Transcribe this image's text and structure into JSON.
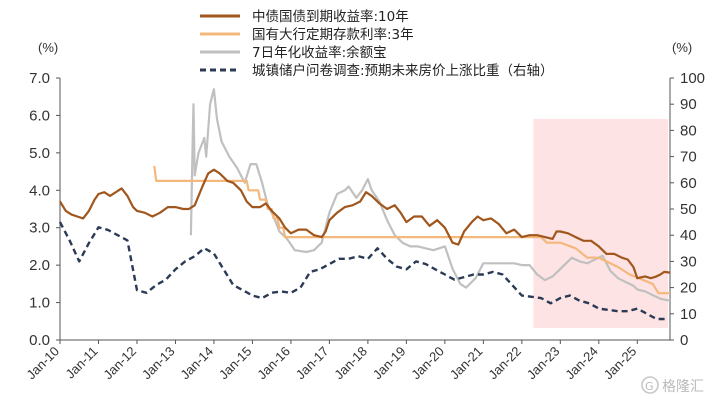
{
  "chart_data": {
    "type": "line",
    "left_unit": "(%)",
    "right_unit": "(%)",
    "y_left": {
      "min": 0,
      "max": 7,
      "ticks": [
        "0.0",
        "1.0",
        "2.0",
        "3.0",
        "4.0",
        "5.0",
        "6.0",
        "7.0"
      ]
    },
    "y_right": {
      "min": 0,
      "max": 100,
      "ticks": [
        "0",
        "10",
        "20",
        "30",
        "40",
        "50",
        "60",
        "70",
        "80",
        "90",
        "100"
      ]
    },
    "x_ticks": [
      "Jan-10",
      "Jan-11",
      "Jan-12",
      "Jan-13",
      "Jan-14",
      "Jan-15",
      "Jan-16",
      "Jan-17",
      "Jan-18",
      "Jan-19",
      "Jan-20",
      "Jan-21",
      "Jan-22",
      "Jan-23",
      "Jan-24",
      "Jan-25"
    ],
    "x_range": [
      2010.0,
      2025.85
    ],
    "shaded_region": {
      "x": [
        2022.3,
        2025.85
      ],
      "color": "#fde3e3"
    },
    "grid": false,
    "series": [
      {
        "name": "中债国债到期收益率:10年",
        "axis": "left",
        "color": "#a0561c",
        "dash": "solid",
        "points": [
          [
            2010.0,
            3.7
          ],
          [
            2010.15,
            3.45
          ],
          [
            2010.3,
            3.35
          ],
          [
            2010.45,
            3.3
          ],
          [
            2010.6,
            3.25
          ],
          [
            2010.75,
            3.45
          ],
          [
            2010.9,
            3.75
          ],
          [
            2011.0,
            3.9
          ],
          [
            2011.15,
            3.95
          ],
          [
            2011.3,
            3.85
          ],
          [
            2011.45,
            3.95
          ],
          [
            2011.6,
            4.05
          ],
          [
            2011.75,
            3.85
          ],
          [
            2011.9,
            3.55
          ],
          [
            2012.0,
            3.45
          ],
          [
            2012.2,
            3.4
          ],
          [
            2012.4,
            3.3
          ],
          [
            2012.6,
            3.4
          ],
          [
            2012.8,
            3.55
          ],
          [
            2013.0,
            3.55
          ],
          [
            2013.2,
            3.5
          ],
          [
            2013.35,
            3.5
          ],
          [
            2013.5,
            3.6
          ],
          [
            2013.7,
            4.1
          ],
          [
            2013.85,
            4.45
          ],
          [
            2014.0,
            4.55
          ],
          [
            2014.15,
            4.45
          ],
          [
            2014.35,
            4.25
          ],
          [
            2014.5,
            4.2
          ],
          [
            2014.7,
            4.0
          ],
          [
            2014.85,
            3.7
          ],
          [
            2015.0,
            3.55
          ],
          [
            2015.2,
            3.55
          ],
          [
            2015.35,
            3.65
          ],
          [
            2015.5,
            3.45
          ],
          [
            2015.7,
            3.25
          ],
          [
            2015.85,
            3.0
          ],
          [
            2016.0,
            2.85
          ],
          [
            2016.2,
            2.95
          ],
          [
            2016.4,
            2.95
          ],
          [
            2016.6,
            2.8
          ],
          [
            2016.8,
            2.75
          ],
          [
            2016.9,
            2.9
          ],
          [
            2017.0,
            3.2
          ],
          [
            2017.2,
            3.4
          ],
          [
            2017.4,
            3.55
          ],
          [
            2017.6,
            3.6
          ],
          [
            2017.8,
            3.7
          ],
          [
            2017.95,
            3.95
          ],
          [
            2018.1,
            3.85
          ],
          [
            2018.3,
            3.65
          ],
          [
            2018.5,
            3.5
          ],
          [
            2018.7,
            3.6
          ],
          [
            2018.85,
            3.4
          ],
          [
            2019.0,
            3.15
          ],
          [
            2019.2,
            3.3
          ],
          [
            2019.4,
            3.3
          ],
          [
            2019.6,
            3.05
          ],
          [
            2019.8,
            3.2
          ],
          [
            2020.0,
            3.0
          ],
          [
            2020.2,
            2.6
          ],
          [
            2020.35,
            2.55
          ],
          [
            2020.5,
            2.9
          ],
          [
            2020.7,
            3.15
          ],
          [
            2020.85,
            3.3
          ],
          [
            2021.0,
            3.2
          ],
          [
            2021.2,
            3.25
          ],
          [
            2021.4,
            3.1
          ],
          [
            2021.6,
            2.85
          ],
          [
            2021.8,
            2.95
          ],
          [
            2022.0,
            2.75
          ],
          [
            2022.2,
            2.8
          ],
          [
            2022.4,
            2.8
          ],
          [
            2022.6,
            2.75
          ],
          [
            2022.8,
            2.7
          ],
          [
            2022.9,
            2.9
          ],
          [
            2023.0,
            2.9
          ],
          [
            2023.2,
            2.85
          ],
          [
            2023.4,
            2.75
          ],
          [
            2023.6,
            2.65
          ],
          [
            2023.8,
            2.65
          ],
          [
            2024.0,
            2.5
          ],
          [
            2024.2,
            2.3
          ],
          [
            2024.4,
            2.3
          ],
          [
            2024.6,
            2.2
          ],
          [
            2024.75,
            2.15
          ],
          [
            2024.9,
            1.95
          ],
          [
            2025.0,
            1.65
          ],
          [
            2025.2,
            1.7
          ],
          [
            2025.35,
            1.65
          ],
          [
            2025.5,
            1.7
          ],
          [
            2025.6,
            1.75
          ],
          [
            2025.7,
            1.82
          ],
          [
            2025.85,
            1.8
          ]
        ]
      },
      {
        "name": "国有大行定期存款利率:3年",
        "axis": "left",
        "color": "#f4b87c",
        "dash": "solid",
        "points": [
          [
            2012.45,
            4.65
          ],
          [
            2012.5,
            4.25
          ],
          [
            2012.55,
            4.25
          ],
          [
            2014.85,
            4.25
          ],
          [
            2014.9,
            4.0
          ],
          [
            2015.15,
            4.0
          ],
          [
            2015.2,
            3.75
          ],
          [
            2015.35,
            3.75
          ],
          [
            2015.4,
            3.5
          ],
          [
            2015.5,
            3.5
          ],
          [
            2015.55,
            3.25
          ],
          [
            2015.65,
            3.25
          ],
          [
            2015.7,
            3.0
          ],
          [
            2015.8,
            3.0
          ],
          [
            2015.85,
            2.75
          ],
          [
            2022.5,
            2.75
          ],
          [
            2022.65,
            2.6
          ],
          [
            2023.0,
            2.6
          ],
          [
            2023.4,
            2.45
          ],
          [
            2023.7,
            2.2
          ],
          [
            2024.0,
            2.2
          ],
          [
            2024.5,
            1.95
          ],
          [
            2024.8,
            1.75
          ],
          [
            2025.4,
            1.5
          ],
          [
            2025.55,
            1.25
          ],
          [
            2025.85,
            1.25
          ]
        ]
      },
      {
        "name": "7日年化收益率:余额宝",
        "axis": "left",
        "color": "#c0c0c0",
        "dash": "solid",
        "points": [
          [
            2013.4,
            2.8
          ],
          [
            2013.45,
            5.5
          ],
          [
            2013.47,
            6.3
          ],
          [
            2013.5,
            4.4
          ],
          [
            2013.6,
            5.0
          ],
          [
            2013.75,
            5.4
          ],
          [
            2013.8,
            4.9
          ],
          [
            2013.9,
            6.3
          ],
          [
            2014.0,
            6.7
          ],
          [
            2014.08,
            5.9
          ],
          [
            2014.2,
            5.3
          ],
          [
            2014.4,
            4.9
          ],
          [
            2014.6,
            4.6
          ],
          [
            2014.8,
            4.2
          ],
          [
            2014.95,
            4.7
          ],
          [
            2015.1,
            4.7
          ],
          [
            2015.25,
            4.2
          ],
          [
            2015.4,
            3.6
          ],
          [
            2015.55,
            3.3
          ],
          [
            2015.7,
            2.9
          ],
          [
            2015.9,
            2.7
          ],
          [
            2016.1,
            2.4
          ],
          [
            2016.4,
            2.35
          ],
          [
            2016.6,
            2.4
          ],
          [
            2016.8,
            2.6
          ],
          [
            2017.0,
            3.4
          ],
          [
            2017.2,
            3.9
          ],
          [
            2017.4,
            4.0
          ],
          [
            2017.5,
            4.1
          ],
          [
            2017.7,
            3.8
          ],
          [
            2017.85,
            4.0
          ],
          [
            2018.0,
            4.3
          ],
          [
            2018.1,
            4.0
          ],
          [
            2018.3,
            3.7
          ],
          [
            2018.5,
            3.2
          ],
          [
            2018.7,
            2.8
          ],
          [
            2018.9,
            2.6
          ],
          [
            2019.1,
            2.5
          ],
          [
            2019.3,
            2.5
          ],
          [
            2019.5,
            2.45
          ],
          [
            2019.7,
            2.4
          ],
          [
            2019.85,
            2.45
          ],
          [
            2020.0,
            2.5
          ],
          [
            2020.2,
            1.9
          ],
          [
            2020.4,
            1.5
          ],
          [
            2020.55,
            1.4
          ],
          [
            2020.8,
            1.65
          ],
          [
            2021.0,
            2.05
          ],
          [
            2021.2,
            2.05
          ],
          [
            2021.5,
            2.05
          ],
          [
            2021.8,
            2.05
          ],
          [
            2022.0,
            2.0
          ],
          [
            2022.2,
            2.0
          ],
          [
            2022.4,
            1.75
          ],
          [
            2022.6,
            1.6
          ],
          [
            2022.8,
            1.7
          ],
          [
            2023.0,
            1.9
          ],
          [
            2023.2,
            2.1
          ],
          [
            2023.3,
            2.2
          ],
          [
            2023.5,
            2.1
          ],
          [
            2023.7,
            2.05
          ],
          [
            2023.9,
            2.15
          ],
          [
            2024.1,
            2.25
          ],
          [
            2024.3,
            1.85
          ],
          [
            2024.5,
            1.65
          ],
          [
            2024.7,
            1.55
          ],
          [
            2024.9,
            1.45
          ],
          [
            2025.0,
            1.35
          ],
          [
            2025.2,
            1.3
          ],
          [
            2025.4,
            1.2
          ],
          [
            2025.6,
            1.1
          ],
          [
            2025.85,
            1.05
          ]
        ]
      },
      {
        "name": "城镇储户问卷调查:预期未来房价上涨比重（右轴）",
        "axis": "right",
        "color": "#2b3a55",
        "dash": "dashed",
        "points": [
          [
            2010.0,
            45
          ],
          [
            2010.25,
            38
          ],
          [
            2010.5,
            30
          ],
          [
            2010.75,
            37
          ],
          [
            2011.0,
            43
          ],
          [
            2011.25,
            42
          ],
          [
            2011.5,
            40
          ],
          [
            2011.75,
            38
          ],
          [
            2012.0,
            19
          ],
          [
            2012.25,
            18
          ],
          [
            2012.5,
            21
          ],
          [
            2012.75,
            23
          ],
          [
            2013.0,
            27
          ],
          [
            2013.25,
            30
          ],
          [
            2013.5,
            32
          ],
          [
            2013.75,
            35
          ],
          [
            2014.0,
            33
          ],
          [
            2014.25,
            27
          ],
          [
            2014.5,
            21
          ],
          [
            2014.75,
            19
          ],
          [
            2015.0,
            17
          ],
          [
            2015.25,
            16
          ],
          [
            2015.5,
            18
          ],
          [
            2015.75,
            18.5
          ],
          [
            2016.0,
            18
          ],
          [
            2016.25,
            20
          ],
          [
            2016.5,
            26
          ],
          [
            2016.75,
            27
          ],
          [
            2017.0,
            29
          ],
          [
            2017.25,
            31
          ],
          [
            2017.5,
            31
          ],
          [
            2017.75,
            32
          ],
          [
            2018.0,
            31
          ],
          [
            2018.25,
            35
          ],
          [
            2018.5,
            31
          ],
          [
            2018.75,
            28
          ],
          [
            2019.0,
            27
          ],
          [
            2019.25,
            30
          ],
          [
            2019.5,
            29
          ],
          [
            2019.75,
            27
          ],
          [
            2020.0,
            25
          ],
          [
            2020.25,
            23
          ],
          [
            2020.5,
            24
          ],
          [
            2020.75,
            25
          ],
          [
            2021.0,
            25
          ],
          [
            2021.25,
            26
          ],
          [
            2021.5,
            25
          ],
          [
            2021.75,
            21
          ],
          [
            2022.0,
            17
          ],
          [
            2022.25,
            16.5
          ],
          [
            2022.5,
            16
          ],
          [
            2022.75,
            14
          ],
          [
            2023.0,
            16
          ],
          [
            2023.25,
            17
          ],
          [
            2023.5,
            15
          ],
          [
            2023.75,
            14
          ],
          [
            2024.0,
            12
          ],
          [
            2024.25,
            11.5
          ],
          [
            2024.5,
            11
          ],
          [
            2024.75,
            11
          ],
          [
            2025.0,
            12
          ],
          [
            2025.25,
            10
          ],
          [
            2025.5,
            8
          ],
          [
            2025.75,
            8
          ]
        ]
      }
    ]
  },
  "watermark": "格隆汇",
  "watermark_logo": "G"
}
